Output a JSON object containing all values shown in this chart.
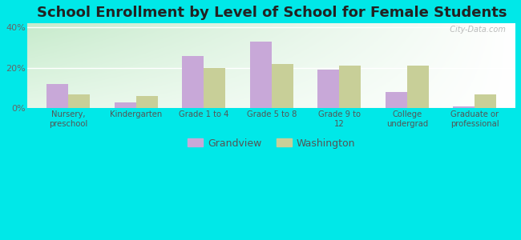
{
  "title": "School Enrollment by Level of School for Female Students",
  "categories": [
    "Nursery,\npreschool",
    "Kindergarten",
    "Grade 1 to 4",
    "Grade 5 to 8",
    "Grade 9 to\n12",
    "College\nundergrad",
    "Graduate or\nprofessional"
  ],
  "grandview": [
    12.0,
    3.0,
    26.0,
    33.0,
    19.0,
    8.0,
    1.0
  ],
  "washington": [
    7.0,
    6.0,
    20.0,
    22.0,
    21.0,
    21.0,
    7.0
  ],
  "grandview_color": "#c8a8d8",
  "washington_color": "#c8cf98",
  "background_color": "#00e8e8",
  "ylim": [
    0,
    42
  ],
  "yticks": [
    0,
    20,
    40
  ],
  "ytick_labels": [
    "0%",
    "20%",
    "40%"
  ],
  "title_fontsize": 13,
  "legend_grandview": "Grandview",
  "legend_washington": "Washington",
  "watermark": "  City-Data.com",
  "plot_grad_top_left": "#c8ead0",
  "plot_grad_bottom_right": "#ffffff",
  "bar_width": 0.32
}
